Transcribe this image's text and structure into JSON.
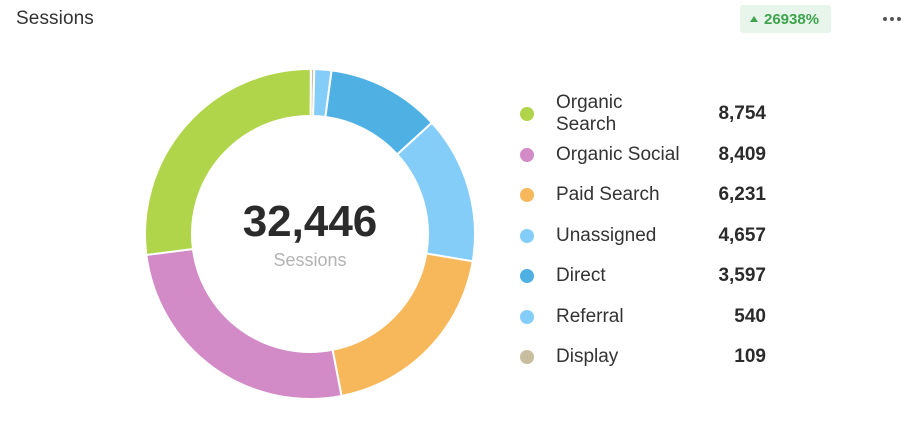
{
  "header": {
    "title": "Sessions",
    "change_badge": "26938%",
    "change_direction_icon": "arrow-up-icon",
    "more_icon": "more-horizontal-icon"
  },
  "colors": {
    "badge_bg": "#e7f5ea",
    "badge_text": "#3fa34d"
  },
  "chart_data": {
    "type": "pie",
    "variant": "donut",
    "total": "32,446",
    "total_label": "Sessions",
    "legend_placement": "right",
    "categories": [
      "Organic Search",
      "Organic Social",
      "Paid Search",
      "Unassigned",
      "Direct",
      "Referral",
      "Display"
    ],
    "values": [
      8754,
      8409,
      6231,
      4657,
      3597,
      540,
      109
    ],
    "value_labels": [
      "8,754",
      "8,409",
      "6,231",
      "4,657",
      "3,597",
      "540",
      "109"
    ],
    "colors": [
      "#b0d44a",
      "#d38bc8",
      "#f6b85a",
      "#84cdf9",
      "#4fb0e3",
      "#84cdf9",
      "#c7bea0"
    ]
  }
}
